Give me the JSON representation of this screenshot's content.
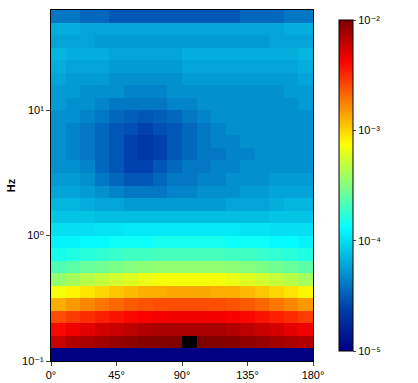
{
  "chart_data": {
    "type": "heatmap",
    "y_label": "Hz",
    "log": "y",
    "xlim": [
      0,
      180
    ],
    "ylim": [
      0.1,
      63.1
    ],
    "xticks": [
      {
        "value": 0,
        "label": "0°"
      },
      {
        "value": 45,
        "label": "45°"
      },
      {
        "value": 90,
        "label": "90°"
      },
      {
        "value": 135,
        "label": "135°"
      },
      {
        "value": 180,
        "label": "180°"
      }
    ],
    "yticks": [
      {
        "value": 0.1,
        "label": "10⁻¹"
      },
      {
        "value": 1,
        "label": "10⁰"
      },
      {
        "value": 10,
        "label": "10¹"
      }
    ],
    "x_bins": [
      0,
      10,
      20,
      30,
      40,
      50,
      60,
      70,
      80,
      90,
      100,
      110,
      120,
      130,
      140,
      150,
      160,
      170,
      180
    ],
    "y_bins": [
      0.1,
      0.1259,
      0.1585,
      0.1995,
      0.2512,
      0.3162,
      0.3981,
      0.5012,
      0.631,
      0.7943,
      1,
      1.259,
      1.585,
      1.995,
      2.512,
      3.162,
      3.981,
      5.012,
      6.31,
      7.943,
      10,
      12.59,
      15.85,
      19.95,
      25.12,
      31.62,
      39.81,
      50.12,
      63.1
    ],
    "cells": [
      [
        1e-05,
        1e-05,
        1e-05,
        1e-05,
        1e-05,
        1e-05,
        1e-05,
        1e-05,
        1e-05,
        1e-05,
        1e-05,
        1e-05,
        1e-05,
        1e-05,
        1e-05,
        1e-05,
        1e-05,
        1e-05
      ],
      [
        0.006,
        0.007,
        0.0075,
        0.008,
        0.0085,
        0.009,
        0.0095,
        0.0098,
        0.01,
        null,
        0.01,
        0.0098,
        0.0095,
        0.009,
        0.0085,
        0.008,
        0.0075,
        0.007
      ],
      [
        0.004,
        0.0045,
        0.005,
        0.0055,
        0.006,
        0.0065,
        0.007,
        0.0075,
        0.0075,
        0.0075,
        0.0075,
        0.0075,
        0.007,
        0.0065,
        0.006,
        0.0055,
        0.005,
        0.0045
      ],
      [
        0.0025,
        0.0028,
        0.0031,
        0.0034,
        0.0037,
        0.004,
        0.0042,
        0.0044,
        0.0045,
        0.0045,
        0.0045,
        0.0044,
        0.0042,
        0.004,
        0.0037,
        0.0034,
        0.0031,
        0.0028
      ],
      [
        0.0013,
        0.0015,
        0.0017,
        0.0019,
        0.0021,
        0.0023,
        0.0024,
        0.0025,
        0.0025,
        0.0025,
        0.0025,
        0.0025,
        0.0024,
        0.0023,
        0.0021,
        0.0019,
        0.0017,
        0.0015
      ],
      [
        0.0007,
        0.0008,
        0.0009,
        0.001,
        0.0011,
        0.0012,
        0.0013,
        0.0013,
        0.00135,
        0.00135,
        0.00135,
        0.0013,
        0.0013,
        0.0012,
        0.0011,
        0.001,
        0.0009,
        0.0008
      ],
      [
        0.00035,
        0.0004,
        0.00045,
        0.0005,
        0.00055,
        0.0006,
        0.00065,
        0.0007,
        0.0007,
        0.0007,
        0.0007,
        0.0007,
        0.00065,
        0.0006,
        0.00055,
        0.0005,
        0.00045,
        0.0004
      ],
      [
        0.00022,
        0.00024,
        0.00026,
        0.00028,
        0.0003,
        0.00032,
        0.00034,
        0.00035,
        0.00035,
        0.00035,
        0.00035,
        0.00035,
        0.00034,
        0.00032,
        0.0003,
        0.00028,
        0.00026,
        0.00024
      ],
      [
        0.00015,
        0.00016,
        0.00017,
        0.00018,
        0.00019,
        0.0002,
        0.0002,
        0.00021,
        0.00021,
        0.00021,
        0.00021,
        0.00021,
        0.0002,
        0.0002,
        0.00019,
        0.00018,
        0.00017,
        0.00016
      ],
      [
        0.00012,
        0.00012,
        0.00013,
        0.00013,
        0.00014,
        0.00014,
        0.00014,
        0.00015,
        0.00015,
        0.00015,
        0.00015,
        0.00015,
        0.00014,
        0.00014,
        0.00014,
        0.00013,
        0.00013,
        0.00012
      ],
      [
        0.0001,
        0.0001,
        0.0001,
        0.000105,
        0.000105,
        0.00011,
        0.00011,
        0.00011,
        0.00011,
        0.00011,
        0.00011,
        0.00011,
        0.00011,
        0.000105,
        0.000105,
        0.0001,
        0.0001,
        0.0001
      ],
      [
        8e-05,
        8e-05,
        8e-05,
        7.5e-05,
        7.5e-05,
        7.5e-05,
        7.5e-05,
        7.5e-05,
        7.5e-05,
        7.5e-05,
        7.5e-05,
        7.5e-05,
        7.5e-05,
        7.5e-05,
        7.5e-05,
        8e-05,
        8e-05,
        8e-05
      ],
      [
        7e-05,
        7e-05,
        6.5e-05,
        6e-05,
        6e-05,
        5.5e-05,
        5.5e-05,
        5.5e-05,
        5.5e-05,
        5.5e-05,
        5.5e-05,
        5.5e-05,
        6e-05,
        6e-05,
        6e-05,
        6.5e-05,
        7e-05,
        7e-05
      ],
      [
        6e-05,
        6e-05,
        5.5e-05,
        5e-05,
        4.5e-05,
        4e-05,
        4e-05,
        4e-05,
        4.5e-05,
        4.5e-05,
        5e-05,
        5e-05,
        5e-05,
        5.5e-05,
        5.5e-05,
        6e-05,
        6e-05,
        6e-05
      ],
      [
        5.5e-05,
        5.5e-05,
        5e-05,
        4e-05,
        3.5e-05,
        3e-05,
        3e-05,
        3.5e-05,
        4e-05,
        4e-05,
        4.5e-05,
        4.5e-05,
        5e-05,
        5e-05,
        5e-05,
        5.5e-05,
        5.5e-05,
        5.5e-05
      ],
      [
        5e-05,
        5e-05,
        4.5e-05,
        3.5e-05,
        3e-05,
        2.5e-05,
        2.5e-05,
        3e-05,
        3.5e-05,
        4e-05,
        4e-05,
        4.5e-05,
        4.5e-05,
        5e-05,
        5e-05,
        5e-05,
        5e-05,
        5e-05
      ],
      [
        5e-05,
        4.5e-05,
        4e-05,
        3.5e-05,
        3e-05,
        2.5e-05,
        2.2e-05,
        2.5e-05,
        3e-05,
        3.5e-05,
        4e-05,
        4e-05,
        4.5e-05,
        4.5e-05,
        5e-05,
        5e-05,
        5e-05,
        5e-05
      ],
      [
        5e-05,
        4.5e-05,
        4e-05,
        3.5e-05,
        3e-05,
        2.5e-05,
        2.2e-05,
        2.5e-05,
        3e-05,
        3.5e-05,
        4e-05,
        4.5e-05,
        4.5e-05,
        5e-05,
        5e-05,
        5e-05,
        5e-05,
        5e-05
      ],
      [
        5e-05,
        4.5e-05,
        4e-05,
        3.5e-05,
        3e-05,
        2.8e-05,
        2.5e-05,
        2.8e-05,
        3e-05,
        3.5e-05,
        4e-05,
        4.5e-05,
        5e-05,
        5e-05,
        5e-05,
        5e-05,
        5e-05,
        5e-05
      ],
      [
        5e-05,
        5e-05,
        4.5e-05,
        4e-05,
        3.5e-05,
        3.2e-05,
        3e-05,
        3.2e-05,
        3.5e-05,
        4e-05,
        4.5e-05,
        5e-05,
        5e-05,
        5e-05,
        5e-05,
        5e-05,
        5e-05,
        5e-05
      ],
      [
        5.5e-05,
        5e-05,
        5e-05,
        4.5e-05,
        4e-05,
        4e-05,
        4e-05,
        4e-05,
        4.5e-05,
        4.5e-05,
        5e-05,
        5e-05,
        5e-05,
        5e-05,
        5e-05,
        5e-05,
        5e-05,
        5.5e-05
      ],
      [
        5.5e-05,
        5.5e-05,
        5e-05,
        5e-05,
        5e-05,
        4.5e-05,
        4.5e-05,
        4.5e-05,
        5e-05,
        5e-05,
        5e-05,
        5e-05,
        5e-05,
        5e-05,
        5e-05,
        5e-05,
        5.5e-05,
        5.5e-05
      ],
      [
        6e-05,
        5.5e-05,
        5.5e-05,
        5.5e-05,
        5e-05,
        5e-05,
        5e-05,
        5e-05,
        5e-05,
        5.5e-05,
        5.5e-05,
        5.5e-05,
        5.5e-05,
        5.5e-05,
        5.5e-05,
        5.5e-05,
        5.5e-05,
        6e-05
      ],
      [
        6.5e-05,
        6e-05,
        6e-05,
        6e-05,
        5.5e-05,
        5.5e-05,
        5.5e-05,
        5.5e-05,
        5.5e-05,
        6e-05,
        6e-05,
        6e-05,
        6e-05,
        6e-05,
        6e-05,
        6e-05,
        6e-05,
        6.5e-05
      ],
      [
        7e-05,
        6.5e-05,
        6.5e-05,
        6.5e-05,
        6e-05,
        6e-05,
        6e-05,
        6e-05,
        6e-05,
        6.5e-05,
        6.5e-05,
        6.5e-05,
        6.5e-05,
        6.5e-05,
        6.5e-05,
        6.5e-05,
        6.5e-05,
        7e-05
      ],
      [
        6e-05,
        6e-05,
        6e-05,
        5.5e-05,
        5.5e-05,
        5.5e-05,
        5.5e-05,
        5.5e-05,
        5.5e-05,
        5.5e-05,
        5.5e-05,
        5.5e-05,
        5.5e-05,
        5.5e-05,
        5.5e-05,
        6e-05,
        6e-05,
        6e-05
      ],
      [
        6.5e-05,
        6.5e-05,
        6e-05,
        6e-05,
        6e-05,
        6e-05,
        6e-05,
        6e-05,
        6e-05,
        6e-05,
        6e-05,
        6e-05,
        6e-05,
        6e-05,
        6e-05,
        6e-05,
        6.5e-05,
        6.5e-05
      ],
      [
        4e-05,
        4e-05,
        3.5e-05,
        3.5e-05,
        3e-05,
        3e-05,
        3e-05,
        3e-05,
        3e-05,
        3e-05,
        3e-05,
        3e-05,
        3e-05,
        3.5e-05,
        3.5e-05,
        3.5e-05,
        4e-05,
        4e-05
      ]
    ],
    "colorbar": {
      "range": [
        1e-05,
        0.01
      ],
      "log": true,
      "ticks": [
        {
          "value": 1e-05,
          "label": "10⁻⁵"
        },
        {
          "value": 0.0001,
          "label": "10⁻⁴"
        },
        {
          "value": 0.001,
          "label": "10⁻³"
        },
        {
          "value": 0.01,
          "label": "10⁻²"
        }
      ]
    }
  }
}
